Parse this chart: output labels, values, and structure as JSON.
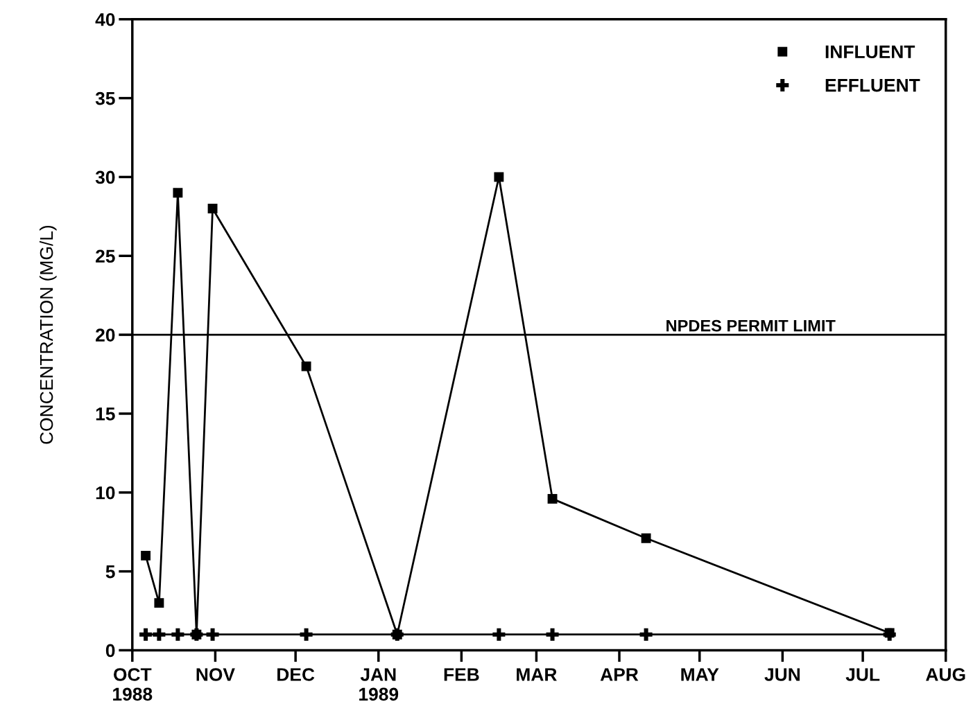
{
  "chart_data": {
    "type": "line",
    "ylabel": "CONCENTRATION (MG/L)",
    "x": [
      "1988-10-06",
      "1988-10-11",
      "1988-10-18",
      "1988-10-25",
      "1988-10-31",
      "1988-12-05",
      "1989-01-08",
      "1989-02-15",
      "1989-03-07",
      "1989-04-11",
      "1989-07-11"
    ],
    "series": [
      {
        "name": "INFLUENT",
        "color": "#000000",
        "marker": "square",
        "values": [
          6,
          3,
          29,
          1,
          28,
          18,
          1,
          30,
          9.6,
          7.1,
          1.1
        ]
      },
      {
        "name": "EFFLUENT",
        "color": "#000000",
        "marker": "cross",
        "values": [
          1,
          1,
          1,
          1,
          1,
          1,
          1,
          1,
          1,
          1,
          1
        ]
      }
    ],
    "xlim": [
      "1988-10-01",
      "1989-08-01"
    ],
    "xticks": [
      {
        "value": "1988-10-01",
        "label": "OCT\n1988"
      },
      {
        "value": "1988-11-01",
        "label": "NOV"
      },
      {
        "value": "1988-12-01",
        "label": "DEC"
      },
      {
        "value": "1989-01-01",
        "label": "JAN\n1989"
      },
      {
        "value": "1989-02-01",
        "label": "FEB"
      },
      {
        "value": "1989-03-01",
        "label": "MAR"
      },
      {
        "value": "1989-04-01",
        "label": "APR"
      },
      {
        "value": "1989-05-01",
        "label": "MAY"
      },
      {
        "value": "1989-06-01",
        "label": "JUN"
      },
      {
        "value": "1989-07-01",
        "label": "JUL"
      },
      {
        "value": "1989-08-01",
        "label": "AUG"
      }
    ],
    "ylim": [
      0,
      40
    ],
    "yticks": [
      0,
      5,
      10,
      15,
      20,
      25,
      30,
      35,
      40
    ],
    "ref_lines": [
      {
        "axis": "y",
        "value": 20,
        "label": "NPDES PERMIT LIMIT",
        "color": "#000000"
      }
    ],
    "legend": "top right",
    "grid": false,
    "line_style": "solid"
  }
}
